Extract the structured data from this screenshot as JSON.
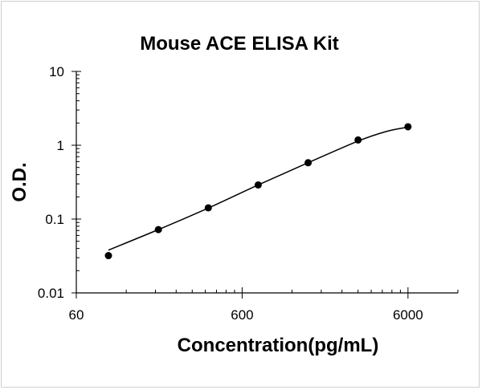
{
  "chart_data": {
    "type": "scatter",
    "title": "Mouse ACE ELISA Kit",
    "xlabel": "Concentration(pg/mL)",
    "ylabel": "O.D.",
    "x_scale": "log",
    "y_scale": "log",
    "xlim": [
      60,
      12000
    ],
    "ylim": [
      0.01,
      10
    ],
    "x_ticks": [
      {
        "value": 60,
        "label": "60"
      },
      {
        "value": 600,
        "label": "600"
      },
      {
        "value": 6000,
        "label": "6000"
      }
    ],
    "y_ticks": [
      {
        "value": 10,
        "label": "10"
      },
      {
        "value": 1,
        "label": "1"
      },
      {
        "value": 0.1,
        "label": "0.1"
      },
      {
        "value": 0.01,
        "label": "0.01"
      }
    ],
    "grid": false,
    "legend": "none",
    "colors": {
      "marker": "#000000",
      "line": "#000000",
      "axis": "#000000"
    },
    "series": [
      {
        "x": [
          93.75,
          187.5,
          375,
          750,
          1500,
          3000,
          6000
        ],
        "y": [
          0.032,
          0.072,
          0.142,
          0.29,
          0.58,
          1.18,
          1.78
        ]
      }
    ],
    "fit_curve": {
      "x": [
        93.75,
        187.5,
        375,
        750,
        1500,
        3000,
        4500,
        6000
      ],
      "y": [
        0.038,
        0.072,
        0.141,
        0.29,
        0.58,
        1.14,
        1.55,
        1.76
      ]
    }
  }
}
